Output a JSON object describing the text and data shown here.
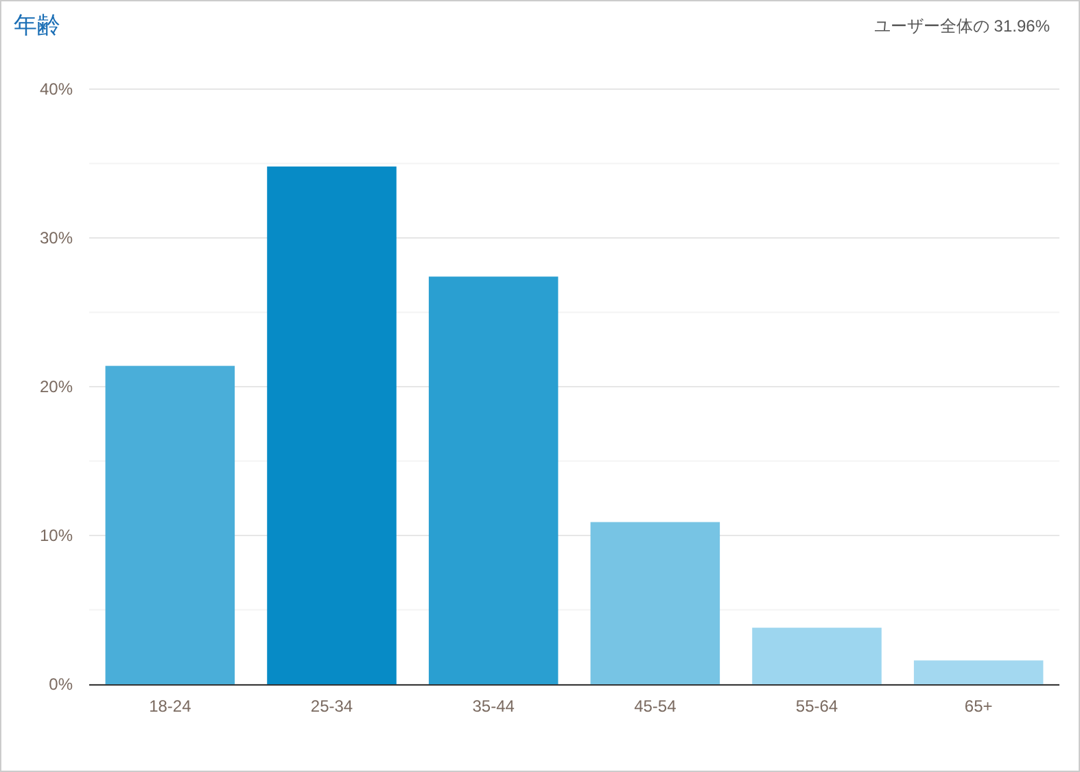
{
  "chart_data": {
    "type": "bar",
    "title": "年齢",
    "annotations": [
      "ユーザー全体の 31.96%"
    ],
    "categories": [
      "18-24",
      "25-34",
      "35-44",
      "45-54",
      "55-64",
      "65+"
    ],
    "values": [
      21.4,
      34.8,
      27.4,
      10.9,
      3.8,
      1.6
    ],
    "colors": [
      "#4aaed9",
      "#078bc6",
      "#2a9fd1",
      "#77c4e4",
      "#9dd6ef",
      "#a3d8f0"
    ],
    "ylim": [
      0,
      40
    ],
    "yticks": [
      {
        "value": 0,
        "label": "0%"
      },
      {
        "value": 5,
        "label": null
      },
      {
        "value": 10,
        "label": "10%"
      },
      {
        "value": 15,
        "label": null
      },
      {
        "value": 20,
        "label": "20%"
      },
      {
        "value": 25,
        "label": null
      },
      {
        "value": 30,
        "label": "30%"
      },
      {
        "value": 35,
        "label": null
      },
      {
        "value": 40,
        "label": "40%"
      }
    ],
    "grid": true
  }
}
